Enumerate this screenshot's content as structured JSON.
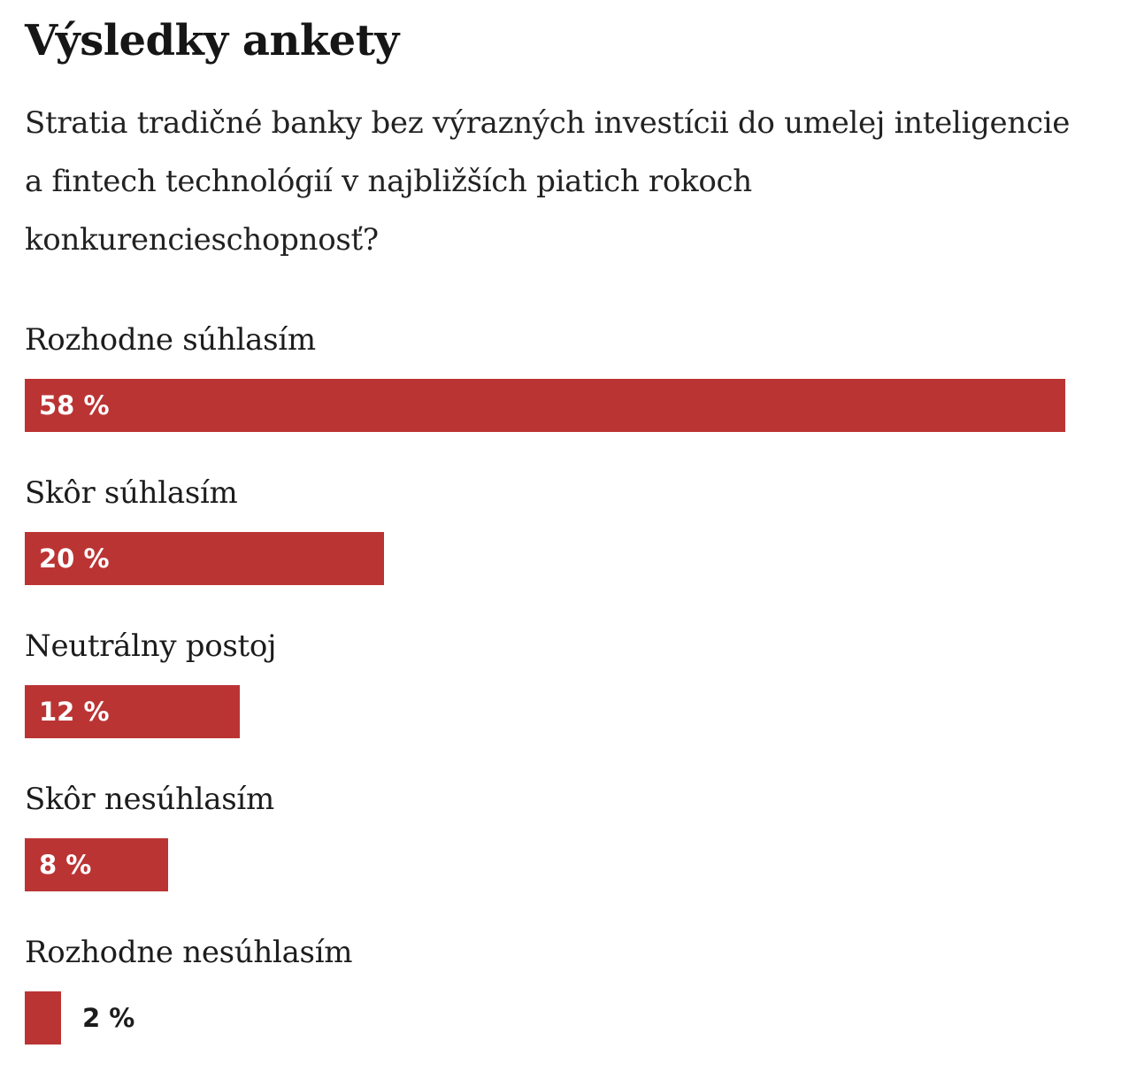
{
  "title": "Výsledky ankety",
  "question": "Stratia tradičné banky bez výrazných investícii do umelej inteligencie a fintech technológií v najbližších piatich rokoch konkurencieschopnosť?",
  "colors": {
    "bar": "#bb3434",
    "text": "#1a1a1a"
  },
  "chart_data": {
    "type": "bar",
    "orientation": "horizontal",
    "title": "Výsledky ankety",
    "categories": [
      "Rozhodne súhlasím",
      "Skôr súhlasím",
      "Neutrálny postoj",
      "Skôr nesúhlasím",
      "Rozhodne nesúhlasím"
    ],
    "values": [
      58,
      20,
      12,
      8,
      2
    ],
    "value_labels": [
      "58 %",
      "20 %",
      "12 %",
      "8 %",
      "2 %"
    ],
    "unit": "%",
    "xlim": [
      0,
      58
    ]
  }
}
